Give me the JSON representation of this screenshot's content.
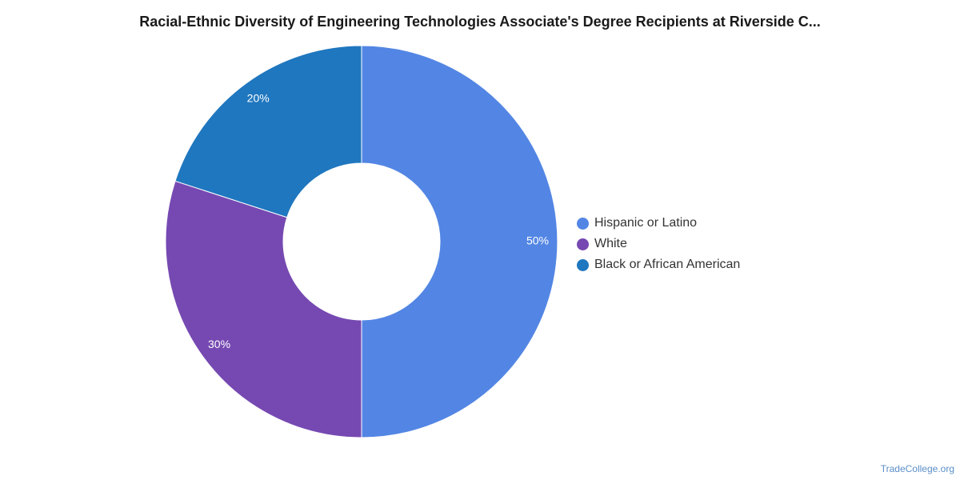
{
  "chart_data": {
    "type": "pie",
    "title": "Racial-Ethnic Diversity of Engineering Technologies Associate's Degree Recipients at Riverside C...",
    "categories": [
      "Hispanic or Latino",
      "White",
      "Black or African American"
    ],
    "values": [
      50,
      30,
      20
    ],
    "value_labels": [
      "50%",
      "30%",
      "20%"
    ],
    "colors": [
      "#5386e4",
      "#7649b2",
      "#1f77bf"
    ],
    "legend": "right"
  },
  "credit": "TradeCollege.org"
}
